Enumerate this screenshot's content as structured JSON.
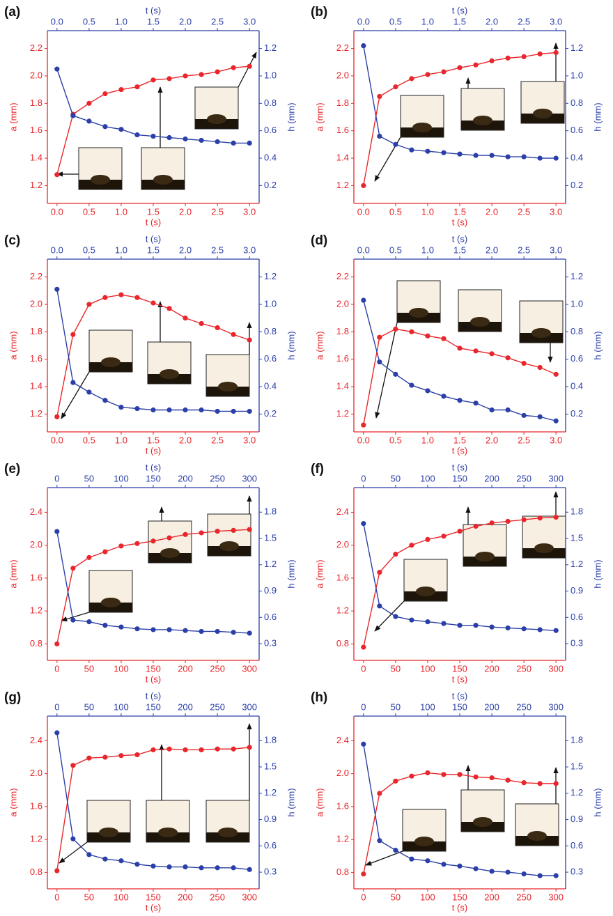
{
  "chart_data": [
    {
      "type": "line",
      "panel_label": "(a)",
      "xlabel": "t (s)",
      "x2label": "t (s)",
      "ylabel": "a (mm)",
      "y2label": "h (mm)",
      "x": [
        0,
        0.25,
        0.5,
        0.75,
        1,
        1.25,
        1.5,
        1.75,
        2,
        2.25,
        2.5,
        2.75,
        3
      ],
      "xlim": [
        -0.15,
        3.15
      ],
      "xticks": [
        {
          "value": 0,
          "label": "0.0"
        },
        0.5,
        {
          "value": 1,
          "label": "1.0"
        },
        1.5,
        {
          "value": 2,
          "label": "2.0"
        },
        2.5,
        {
          "value": 3,
          "label": "3.0"
        }
      ],
      "ylim": [
        1.07,
        2.33
      ],
      "yticks": [
        1.2,
        1.4,
        1.6,
        1.8,
        {
          "value": 2,
          "label": "2.0"
        },
        2.2
      ],
      "y2lim": [
        0.07,
        1.33
      ],
      "y2ticks": [
        0.2,
        0.4,
        0.6,
        0.8,
        {
          "value": 1,
          "label": "1.0"
        },
        1.2
      ],
      "series": [
        {
          "color": "#e8262b",
          "values": [
            1.28,
            1.72,
            1.8,
            1.87,
            1.9,
            1.92,
            1.97,
            1.98,
            2.0,
            2.01,
            2.03,
            2.06,
            2.07
          ]
        },
        {
          "color": "#2b3fa8",
          "axis": "y2",
          "values": [
            1.05,
            0.71,
            0.67,
            0.63,
            0.61,
            0.57,
            0.56,
            0.55,
            0.54,
            0.53,
            0.52,
            0.51,
            0.51
          ]
        }
      ]
    },
    {
      "type": "line",
      "panel_label": "(b)",
      "xlabel": "t (s)",
      "x2label": "t (s)",
      "ylabel": "a (mm)",
      "y2label": "h (mm)",
      "x": [
        0,
        0.25,
        0.5,
        0.75,
        1,
        1.25,
        1.5,
        1.75,
        2,
        2.25,
        2.5,
        2.75,
        3
      ],
      "xlim": [
        -0.15,
        3.15
      ],
      "xticks": [
        {
          "value": 0,
          "label": "0.0"
        },
        0.5,
        {
          "value": 1,
          "label": "1.0"
        },
        1.5,
        {
          "value": 2,
          "label": "2.0"
        },
        2.5,
        {
          "value": 3,
          "label": "3.0"
        }
      ],
      "ylim": [
        1.07,
        2.33
      ],
      "yticks": [
        1.2,
        1.4,
        1.6,
        1.8,
        {
          "value": 2,
          "label": "2.0"
        },
        2.2
      ],
      "y2lim": [
        0.07,
        1.33
      ],
      "y2ticks": [
        0.2,
        0.4,
        0.6,
        0.8,
        {
          "value": 1,
          "label": "1.0"
        },
        1.2
      ],
      "series": [
        {
          "color": "#e8262b",
          "values": [
            1.2,
            1.85,
            1.92,
            1.98,
            2.01,
            2.03,
            2.06,
            2.08,
            2.11,
            2.13,
            2.14,
            2.16,
            2.17
          ]
        },
        {
          "color": "#2b3fa8",
          "axis": "y2",
          "values": [
            1.22,
            0.56,
            0.5,
            0.46,
            0.45,
            0.44,
            0.43,
            0.42,
            0.42,
            0.41,
            0.41,
            0.4,
            0.4
          ]
        }
      ]
    },
    {
      "type": "line",
      "panel_label": "(c)",
      "xlabel": "t (s)",
      "x2label": "t (s)",
      "ylabel": "a (mm)",
      "y2label": "h (mm)",
      "x": [
        0,
        0.25,
        0.5,
        0.75,
        1,
        1.25,
        1.5,
        1.75,
        2,
        2.25,
        2.5,
        2.75,
        3
      ],
      "xlim": [
        -0.15,
        3.15
      ],
      "xticks": [
        {
          "value": 0,
          "label": "0.0"
        },
        0.5,
        {
          "value": 1,
          "label": "1.0"
        },
        1.5,
        {
          "value": 2,
          "label": "2.0"
        },
        2.5,
        {
          "value": 3,
          "label": "3.0"
        }
      ],
      "ylim": [
        1.07,
        2.33
      ],
      "yticks": [
        1.2,
        1.4,
        1.6,
        1.8,
        {
          "value": 2,
          "label": "2.0"
        },
        2.2
      ],
      "y2lim": [
        0.07,
        1.33
      ],
      "y2ticks": [
        0.2,
        0.4,
        0.6,
        0.8,
        {
          "value": 1,
          "label": "1.0"
        },
        1.2
      ],
      "series": [
        {
          "color": "#e8262b",
          "values": [
            1.18,
            1.78,
            2.0,
            2.05,
            2.07,
            2.05,
            2.01,
            1.97,
            1.9,
            1.86,
            1.83,
            1.78,
            1.74
          ]
        },
        {
          "color": "#2b3fa8",
          "axis": "y2",
          "values": [
            1.11,
            0.43,
            0.36,
            0.3,
            0.25,
            0.24,
            0.23,
            0.23,
            0.23,
            0.23,
            0.22,
            0.22,
            0.22
          ]
        }
      ]
    },
    {
      "type": "line",
      "panel_label": "(d)",
      "xlabel": "t (s)",
      "x2label": "t (s)",
      "ylabel": "a (mm)",
      "y2label": "h (mm)",
      "x": [
        0,
        0.25,
        0.5,
        0.75,
        1,
        1.25,
        1.5,
        1.75,
        2,
        2.25,
        2.5,
        2.75,
        3
      ],
      "xlim": [
        -0.15,
        3.15
      ],
      "xticks": [
        {
          "value": 0,
          "label": "0.0"
        },
        0.5,
        {
          "value": 1,
          "label": "1.0"
        },
        1.5,
        {
          "value": 2,
          "label": "2.0"
        },
        2.5,
        {
          "value": 3,
          "label": "3.0"
        }
      ],
      "ylim": [
        1.07,
        2.33
      ],
      "yticks": [
        1.2,
        1.4,
        1.6,
        1.8,
        {
          "value": 2,
          "label": "2.0"
        },
        2.2
      ],
      "y2lim": [
        0.07,
        1.33
      ],
      "y2ticks": [
        0.2,
        0.4,
        0.6,
        0.8,
        {
          "value": 1,
          "label": "1.0"
        },
        1.2
      ],
      "series": [
        {
          "color": "#e8262b",
          "values": [
            1.12,
            1.76,
            1.82,
            1.8,
            1.77,
            1.75,
            1.68,
            1.66,
            1.64,
            1.61,
            1.57,
            1.54,
            1.49
          ]
        },
        {
          "color": "#2b3fa8",
          "axis": "y2",
          "values": [
            1.03,
            0.58,
            0.49,
            0.41,
            0.37,
            0.33,
            0.3,
            0.28,
            0.23,
            0.23,
            0.19,
            0.18,
            0.15
          ]
        }
      ]
    },
    {
      "type": "line",
      "panel_label": "(e)",
      "xlabel": "t (s)",
      "x2label": "t (s)",
      "ylabel": "a (mm)",
      "y2label": "h (mm)",
      "x": [
        0,
        25,
        50,
        75,
        100,
        125,
        150,
        175,
        200,
        225,
        250,
        275,
        300
      ],
      "xlim": [
        -15,
        315
      ],
      "xticks": [
        0,
        50,
        100,
        150,
        200,
        250,
        300
      ],
      "ylim": [
        0.6,
        2.7
      ],
      "yticks": [
        0.8,
        1.2,
        1.6,
        {
          "value": 2,
          "label": "2.0"
        },
        2.4
      ],
      "y2lim": [
        0.11,
        2.08
      ],
      "y2ticks": [
        0.3,
        0.6,
        0.9,
        1.2,
        1.5,
        1.8
      ],
      "series": [
        {
          "color": "#e8262b",
          "values": [
            0.8,
            1.72,
            1.85,
            1.92,
            1.99,
            2.02,
            2.05,
            2.09,
            2.13,
            2.15,
            2.17,
            2.18,
            2.19
          ]
        },
        {
          "color": "#2b3fa8",
          "axis": "y2",
          "values": [
            1.58,
            0.57,
            0.55,
            0.51,
            0.49,
            0.47,
            0.46,
            0.46,
            0.45,
            0.44,
            0.44,
            0.43,
            0.42
          ]
        }
      ]
    },
    {
      "type": "line",
      "panel_label": "(f)",
      "xlabel": "t (s)",
      "x2label": "t (s)",
      "ylabel": "a (mm)",
      "y2label": "h (mm)",
      "x": [
        0,
        25,
        50,
        75,
        100,
        125,
        150,
        175,
        200,
        225,
        250,
        275,
        300
      ],
      "xlim": [
        -15,
        315
      ],
      "xticks": [
        0,
        50,
        100,
        150,
        200,
        250,
        300
      ],
      "ylim": [
        0.6,
        2.7
      ],
      "yticks": [
        0.8,
        1.2,
        1.6,
        {
          "value": 2,
          "label": "2.0"
        },
        2.4
      ],
      "y2lim": [
        0.11,
        2.08
      ],
      "y2ticks": [
        0.3,
        0.6,
        0.9,
        1.2,
        1.5,
        1.8
      ],
      "series": [
        {
          "color": "#e8262b",
          "values": [
            0.76,
            1.67,
            1.89,
            2.0,
            2.07,
            2.11,
            2.17,
            2.23,
            2.27,
            2.29,
            2.31,
            2.33,
            2.34
          ]
        },
        {
          "color": "#2b3fa8",
          "axis": "y2",
          "values": [
            1.67,
            0.73,
            0.61,
            0.57,
            0.55,
            0.53,
            0.51,
            0.51,
            0.49,
            0.48,
            0.47,
            0.46,
            0.45
          ]
        }
      ]
    },
    {
      "type": "line",
      "panel_label": "(g)",
      "xlabel": "t (s)",
      "x2label": "t (s)",
      "ylabel": "a (mm)",
      "y2label": "h (mm)",
      "x": [
        0,
        25,
        50,
        75,
        100,
        125,
        150,
        175,
        200,
        225,
        250,
        275,
        300
      ],
      "xlim": [
        -15,
        315
      ],
      "xticks": [
        0,
        50,
        100,
        150,
        200,
        250,
        300
      ],
      "ylim": [
        0.6,
        2.7
      ],
      "yticks": [
        0.8,
        1.2,
        1.6,
        {
          "value": 2,
          "label": "2.0"
        },
        2.4
      ],
      "y2lim": [
        0.11,
        2.08
      ],
      "y2ticks": [
        0.3,
        0.6,
        0.9,
        1.2,
        1.5,
        1.8
      ],
      "series": [
        {
          "color": "#e8262b",
          "values": [
            0.82,
            2.1,
            2.19,
            2.2,
            2.22,
            2.23,
            2.29,
            2.3,
            2.29,
            2.29,
            2.3,
            2.3,
            2.32
          ]
        },
        {
          "color": "#2b3fa8",
          "axis": "y2",
          "values": [
            1.89,
            0.68,
            0.5,
            0.45,
            0.43,
            0.39,
            0.37,
            0.36,
            0.36,
            0.35,
            0.35,
            0.35,
            0.33
          ]
        }
      ]
    },
    {
      "type": "line",
      "panel_label": "(h)",
      "xlabel": "t (s)",
      "x2label": "t (s)",
      "ylabel": "a (mm)",
      "y2label": "h (mm)",
      "x": [
        0,
        25,
        50,
        75,
        100,
        125,
        150,
        175,
        200,
        225,
        250,
        275,
        300
      ],
      "xlim": [
        -15,
        315
      ],
      "xticks": [
        0,
        50,
        100,
        150,
        200,
        250,
        300
      ],
      "ylim": [
        0.6,
        2.7
      ],
      "yticks": [
        0.8,
        1.2,
        1.6,
        {
          "value": 2,
          "label": "2.0"
        },
        2.4
      ],
      "y2lim": [
        0.11,
        2.08
      ],
      "y2ticks": [
        0.3,
        0.6,
        0.9,
        1.2,
        1.5,
        1.8
      ],
      "series": [
        {
          "color": "#e8262b",
          "values": [
            0.78,
            1.76,
            1.91,
            1.97,
            2.01,
            1.99,
            1.99,
            1.96,
            1.95,
            1.92,
            1.89,
            1.88,
            1.88
          ]
        },
        {
          "color": "#2b3fa8",
          "axis": "y2",
          "values": [
            1.76,
            0.66,
            0.55,
            0.45,
            0.43,
            0.39,
            0.37,
            0.34,
            0.31,
            0.3,
            0.28,
            0.26,
            0.26
          ]
        }
      ]
    }
  ]
}
